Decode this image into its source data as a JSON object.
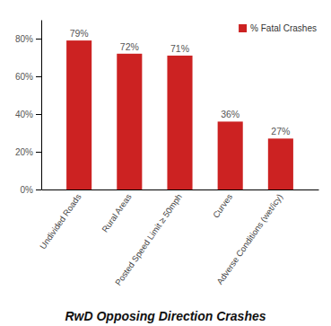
{
  "chart_data": {
    "type": "bar",
    "title": "RwD Opposing Direction Crashes",
    "categories": [
      "Undivided Roads",
      "Rural Areas",
      "Posted Speed Limit ≥ 50mph",
      "Curves",
      "Adverse Conditions (wet/icy)"
    ],
    "series": [
      {
        "name": "% Fatal Crashes",
        "color": "#CC2222",
        "values": [
          79,
          72,
          71,
          36,
          27
        ],
        "value_labels": [
          "79%",
          "72%",
          "71%",
          "36%",
          "27%"
        ]
      }
    ],
    "ylim": [
      0,
      90
    ],
    "yticks": [
      {
        "value": 0,
        "label": "0%"
      },
      {
        "value": 20,
        "label": "20%"
      },
      {
        "value": 40,
        "label": "40%"
      },
      {
        "value": 60,
        "label": "60%"
      },
      {
        "value": 80,
        "label": "80%"
      }
    ],
    "grid": false,
    "legend": "upper right",
    "data_labels": true
  }
}
